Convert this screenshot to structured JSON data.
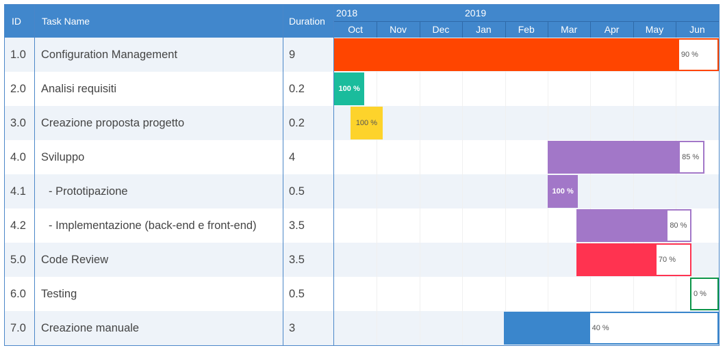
{
  "columns": {
    "id": "ID",
    "name": "Task Name",
    "duration": "Duration"
  },
  "years": [
    "2018",
    "2019"
  ],
  "months": [
    "Oct",
    "Nov",
    "Dec",
    "Jan",
    "Feb",
    "Mar",
    "Apr",
    "May",
    "Jun"
  ],
  "chart_data": {
    "type": "gantt",
    "title": "",
    "time_axis": {
      "start": "2018-10",
      "end": "2019-06",
      "unit": "month"
    },
    "tasks": [
      {
        "id": "1.0",
        "name": "Configuration Management",
        "duration": "9",
        "start": "2018-10-01",
        "end": "2019-06-30",
        "progress": 90,
        "progress_label": "90 %",
        "color": "#ff4500"
      },
      {
        "id": "2.0",
        "name": "Analisi requisiti",
        "duration": "0.2",
        "start": "2018-10-01",
        "end": "2018-10-22",
        "progress": 100,
        "progress_label": "100 %",
        "color": "#1abc9c"
      },
      {
        "id": "3.0",
        "name": "Creazione proposta progetto",
        "duration": "0.2",
        "start": "2018-10-13",
        "end": "2018-11-04",
        "progress": 100,
        "progress_label": "100 %",
        "color": "#fdd32b"
      },
      {
        "id": "4.0",
        "name": "Sviluppo",
        "duration": "4",
        "start": "2019-03-01",
        "end": "2019-06-20",
        "progress": 85,
        "progress_label": "85 %",
        "color": "#a277c8"
      },
      {
        "id": "4.1",
        "name": "- Prototipazione",
        "duration": "0.5",
        "start": "2019-03-01",
        "end": "2019-03-22",
        "progress": 100,
        "progress_label": "100 %",
        "color": "#a277c8"
      },
      {
        "id": "4.2",
        "name": "- Implementazione (back-end e front-end)",
        "duration": "3.5",
        "start": "2019-03-22",
        "end": "2019-06-11",
        "progress": 80,
        "progress_label": "80 %",
        "color": "#a277c8"
      },
      {
        "id": "5.0",
        "name": "Code Review",
        "duration": "3.5",
        "start": "2019-03-22",
        "end": "2019-06-11",
        "progress": 70,
        "progress_label": "70 %",
        "color": "#ff3350"
      },
      {
        "id": "6.0",
        "name": "Testing",
        "duration": "0.5",
        "start": "2019-06-11",
        "end": "2019-06-30",
        "progress": 0,
        "progress_label": "0 %",
        "color": "#0a9447"
      },
      {
        "id": "7.0",
        "name": "Creazione manuale",
        "duration": "3",
        "start": "2019-01-31",
        "end": "2019-06-30",
        "progress": 40,
        "progress_label": "40 %",
        "color": "#3a86cc"
      }
    ]
  }
}
